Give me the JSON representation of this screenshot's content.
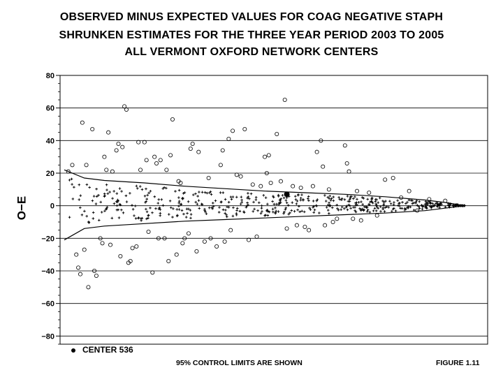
{
  "titles": {
    "line1": "OBSERVED MINUS EXPECTED VALUES FOR COAG NEGATIVE STAPH",
    "line2": "SHRUNKEN ESTIMATES FOR THE THREE YEAR PERIOD 2003 TO 2005",
    "line3": "ALL VERMONT OXFORD NETWORK CENTERS"
  },
  "legend": {
    "label": "CENTER 536"
  },
  "footer": {
    "note": "95% CONTROL LIMITS ARE SHOWN",
    "figure": "FIGURE 1.11"
  },
  "chart_data": {
    "type": "scatter",
    "ylabel": "O−E",
    "xlabel": "",
    "ylim": [
      -85,
      80
    ],
    "yticks": [
      "80",
      "60",
      "40",
      "20",
      "0",
      "−20",
      "−40",
      "−60",
      "−80"
    ],
    "ytick_values": [
      80,
      60,
      40,
      20,
      0,
      -20,
      -40,
      -60,
      -80
    ],
    "grid": true,
    "x_description": "centers ordered by expected count (index 0–100)",
    "xlim": [
      0,
      100
    ],
    "control_limits": {
      "x": [
        0,
        5,
        10,
        20,
        30,
        40,
        50,
        60,
        70,
        80,
        90,
        95,
        100
      ],
      "upper": [
        22,
        17,
        15.5,
        14,
        12,
        10.5,
        9,
        8,
        7,
        5.5,
        3.5,
        2,
        0
      ],
      "lower": [
        -21,
        -14,
        -12.5,
        -11,
        -9.5,
        -8.5,
        -7.5,
        -6.5,
        -5.5,
        -4.5,
        -3,
        -1.5,
        0
      ]
    },
    "outliers": [
      [
        1,
        21
      ],
      [
        2,
        25
      ],
      [
        3,
        -30
      ],
      [
        3.5,
        -38
      ],
      [
        4,
        -42
      ],
      [
        4.5,
        51
      ],
      [
        5,
        -27
      ],
      [
        5.5,
        25
      ],
      [
        6,
        -50
      ],
      [
        7,
        47
      ],
      [
        7.5,
        -40
      ],
      [
        8,
        -43
      ],
      [
        9,
        -20
      ],
      [
        9.5,
        -23
      ],
      [
        10,
        30
      ],
      [
        10.5,
        22
      ],
      [
        11,
        45
      ],
      [
        11.5,
        -24
      ],
      [
        12,
        21
      ],
      [
        13,
        34
      ],
      [
        13.5,
        38
      ],
      [
        14,
        -31
      ],
      [
        14.5,
        36
      ],
      [
        15,
        61
      ],
      [
        15.5,
        59
      ],
      [
        16,
        -35
      ],
      [
        16.5,
        -34
      ],
      [
        17,
        -26
      ],
      [
        18,
        -25
      ],
      [
        18.5,
        39
      ],
      [
        19,
        22
      ],
      [
        20,
        39
      ],
      [
        20.5,
        28
      ],
      [
        21,
        -16
      ],
      [
        22,
        -41
      ],
      [
        22.5,
        30
      ],
      [
        23,
        26
      ],
      [
        23.5,
        -20
      ],
      [
        24,
        28
      ],
      [
        25,
        -20
      ],
      [
        25.5,
        22
      ],
      [
        26,
        -34
      ],
      [
        26.5,
        31
      ],
      [
        27,
        53
      ],
      [
        28,
        -30
      ],
      [
        28.5,
        15
      ],
      [
        29,
        14
      ],
      [
        29.5,
        -23
      ],
      [
        30,
        -20
      ],
      [
        31,
        -17
      ],
      [
        31.5,
        35
      ],
      [
        32,
        38
      ],
      [
        33,
        -28
      ],
      [
        33.5,
        33
      ],
      [
        35,
        -22
      ],
      [
        36,
        17
      ],
      [
        36.5,
        -20
      ],
      [
        38,
        -25
      ],
      [
        39,
        25
      ],
      [
        39.5,
        34
      ],
      [
        40,
        -22
      ],
      [
        41,
        41
      ],
      [
        41.5,
        -15
      ],
      [
        42,
        46
      ],
      [
        43,
        19
      ],
      [
        44,
        18
      ],
      [
        45,
        47
      ],
      [
        46,
        -21
      ],
      [
        47,
        13
      ],
      [
        48,
        -19
      ],
      [
        49,
        12
      ],
      [
        50,
        30
      ],
      [
        50.5,
        20
      ],
      [
        51,
        31
      ],
      [
        51.5,
        14
      ],
      [
        53,
        44
      ],
      [
        54,
        15
      ],
      [
        55,
        65
      ],
      [
        55.5,
        -14
      ],
      [
        57,
        12
      ],
      [
        58,
        -12
      ],
      [
        59,
        11
      ],
      [
        60,
        -13
      ],
      [
        61,
        -15
      ],
      [
        62,
        12
      ],
      [
        63,
        33
      ],
      [
        64,
        40
      ],
      [
        64.5,
        24
      ],
      [
        65,
        -12
      ],
      [
        66,
        10
      ],
      [
        67,
        -10
      ],
      [
        68,
        -8
      ],
      [
        70,
        37
      ],
      [
        70.5,
        26
      ],
      [
        71,
        21
      ],
      [
        72,
        -8
      ],
      [
        73,
        9
      ],
      [
        74,
        -9
      ],
      [
        76,
        8
      ],
      [
        78,
        -6
      ],
      [
        80,
        16
      ],
      [
        82,
        17
      ],
      [
        84,
        5
      ],
      [
        86,
        9
      ],
      [
        88,
        -3
      ],
      [
        91,
        4
      ],
      [
        95,
        3
      ]
    ],
    "center_536": {
      "x": 55.5,
      "y": 7
    }
  }
}
